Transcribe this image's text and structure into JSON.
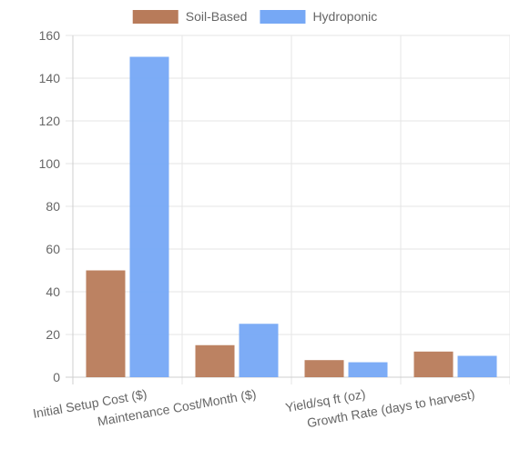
{
  "chart_data": {
    "type": "bar",
    "categories": [
      "Initial Setup Cost ($)",
      "Maintenance Cost/Month ($)",
      "Yield/sq ft (oz)",
      "Growth Rate (days to harvest)"
    ],
    "series": [
      {
        "name": "Soil-Based",
        "values": [
          50,
          15,
          8,
          12
        ],
        "color": "#b87b5a"
      },
      {
        "name": "Hydroponic",
        "values": [
          150,
          25,
          7,
          10
        ],
        "color": "#76a8f5"
      }
    ],
    "ylim": [
      0,
      160
    ],
    "yticks": [
      0,
      20,
      40,
      60,
      80,
      100,
      120,
      140,
      160
    ],
    "grid": true,
    "legend_position": "top-center",
    "title": "",
    "xlabel": "",
    "ylabel": ""
  }
}
